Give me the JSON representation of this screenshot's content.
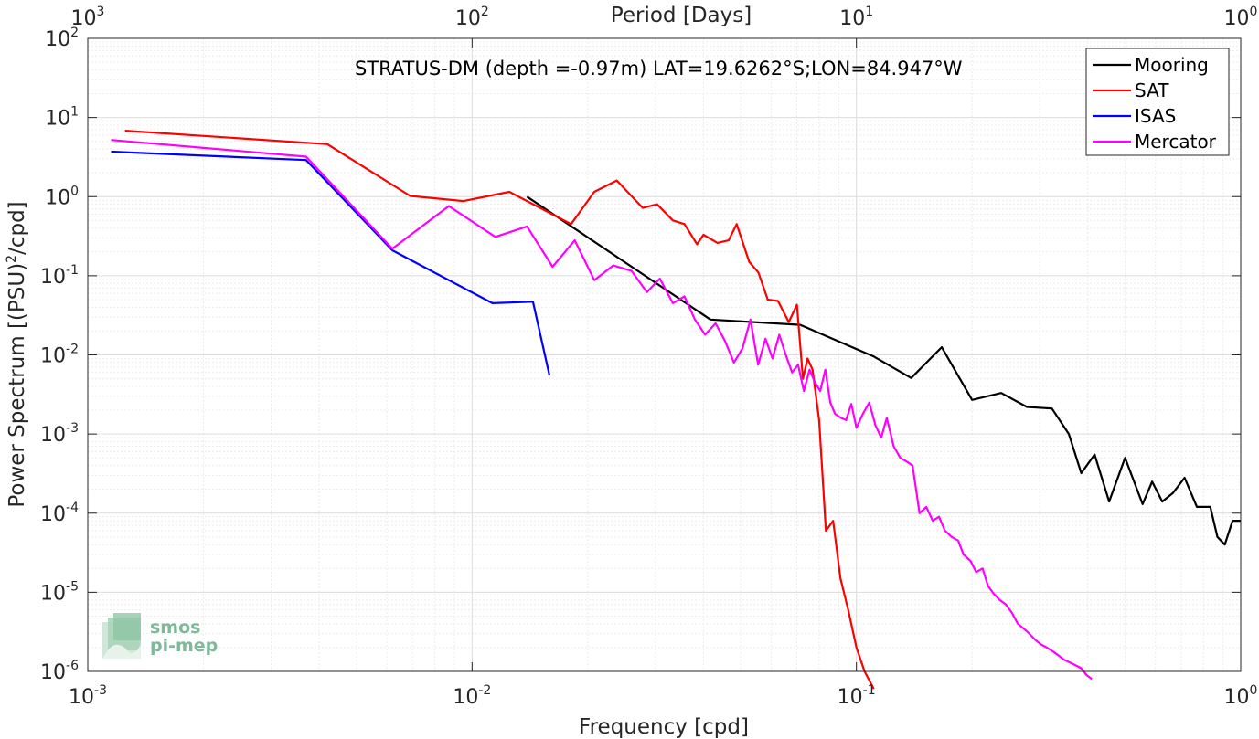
{
  "chart_data": {
    "type": "line",
    "title": "STRATUS-DM (depth =-0.97m) LAT=19.6262°S;LON=84.947°W",
    "xlabel": "Frequency [cpd]",
    "ylabel_main": "Power Spectrum [(PSU)",
    "ylabel_sup": "2",
    "ylabel_tail": "/cpd]",
    "top_axis_label": "Period [Days]",
    "x_scale": "log",
    "y_scale": "log",
    "xlim": [
      0.001,
      1
    ],
    "ylim": [
      1e-06,
      100
    ],
    "grid": true,
    "legend_position": "top-right",
    "x_ticks": [
      {
        "v": 0.001,
        "base": "10",
        "exp": "-3"
      },
      {
        "v": 0.01,
        "base": "10",
        "exp": "-2"
      },
      {
        "v": 0.1,
        "base": "10",
        "exp": "-1"
      },
      {
        "v": 1,
        "base": "10",
        "exp": "0"
      }
    ],
    "top_ticks": [
      {
        "v": 0.001,
        "base": "10",
        "exp": "3"
      },
      {
        "v": 0.01,
        "base": "10",
        "exp": "2"
      },
      {
        "v": 0.1,
        "base": "10",
        "exp": "1"
      },
      {
        "v": 1,
        "base": "10",
        "exp": "0"
      }
    ],
    "y_ticks": [
      {
        "v": 1e-06,
        "base": "10",
        "exp": "-6"
      },
      {
        "v": 1e-05,
        "base": "10",
        "exp": "-5"
      },
      {
        "v": 0.0001,
        "base": "10",
        "exp": "-4"
      },
      {
        "v": 0.001,
        "base": "10",
        "exp": "-3"
      },
      {
        "v": 0.01,
        "base": "10",
        "exp": "-2"
      },
      {
        "v": 0.1,
        "base": "10",
        "exp": "-1"
      },
      {
        "v": 1,
        "base": "10",
        "exp": "0"
      },
      {
        "v": 10,
        "base": "10",
        "exp": "1"
      },
      {
        "v": 100,
        "base": "10",
        "exp": "2"
      }
    ],
    "series": [
      {
        "name": "Mooring",
        "color": "#000000",
        "x": [
          0.0139,
          0.0417,
          0.0714,
          0.1111,
          0.1389,
          0.1667,
          0.2,
          0.2381,
          0.2778,
          0.3226,
          0.3571,
          0.3846,
          0.4167,
          0.4545,
          0.5,
          0.5556,
          0.5882,
          0.625,
          0.6667,
          0.7143,
          0.7692,
          0.8333,
          0.8696,
          0.9091,
          0.9524,
          1.0
        ],
        "y": [
          1.0,
          0.028,
          0.024,
          0.0095,
          0.0051,
          0.0125,
          0.0027,
          0.0033,
          0.0022,
          0.0021,
          0.001,
          0.00032,
          0.00055,
          0.00014,
          0.0005,
          0.00013,
          0.00025,
          0.00014,
          0.00018,
          0.00028,
          0.00012,
          0.00012,
          5e-05,
          4e-05,
          8e-05,
          8e-05
        ]
      },
      {
        "name": "SAT",
        "color": "#ff0000",
        "x": [
          0.00125,
          0.0042,
          0.0069,
          0.0095,
          0.0125,
          0.0181,
          0.0208,
          0.0238,
          0.0278,
          0.0303,
          0.0333,
          0.0357,
          0.0385,
          0.04,
          0.0435,
          0.0465,
          0.0488,
          0.0526,
          0.0556,
          0.0588,
          0.0625,
          0.0667,
          0.07,
          0.0726,
          0.0746,
          0.0769,
          0.08,
          0.0833,
          0.087,
          0.0909,
          0.0952,
          0.1,
          0.105,
          0.111
        ],
        "y": [
          6.8,
          4.6,
          1.02,
          0.88,
          1.15,
          0.45,
          1.15,
          1.6,
          0.72,
          0.8,
          0.5,
          0.45,
          0.25,
          0.33,
          0.26,
          0.28,
          0.45,
          0.15,
          0.11,
          0.05,
          0.048,
          0.026,
          0.043,
          0.005,
          0.009,
          0.0065,
          0.0015,
          6e-05,
          8e-05,
          1.5e-05,
          6e-06,
          2e-06,
          1e-06,
          6e-07
        ]
      },
      {
        "name": "ISAS",
        "color": "#0000ff",
        "x": [
          0.00115,
          0.0037,
          0.0062,
          0.0113,
          0.0144,
          0.0159
        ],
        "y": [
          3.7,
          2.9,
          0.21,
          0.045,
          0.047,
          0.0055
        ]
      },
      {
        "name": "Mercator",
        "color": "#ff00ff",
        "x": [
          0.00115,
          0.0037,
          0.0062,
          0.0087,
          0.0115,
          0.0139,
          0.0162,
          0.0185,
          0.0208,
          0.0233,
          0.026,
          0.0285,
          0.0308,
          0.0333,
          0.0357,
          0.038,
          0.0404,
          0.043,
          0.0455,
          0.048,
          0.0505,
          0.053,
          0.0555,
          0.058,
          0.0605,
          0.063,
          0.0655,
          0.068,
          0.0705,
          0.073,
          0.0755,
          0.078,
          0.0805,
          0.083,
          0.0855,
          0.088,
          0.091,
          0.094,
          0.097,
          0.1,
          0.104,
          0.108,
          0.112,
          0.116,
          0.12,
          0.125,
          0.13,
          0.135,
          0.14,
          0.146,
          0.152,
          0.158,
          0.164,
          0.17,
          0.177,
          0.184,
          0.19,
          0.198,
          0.205,
          0.213,
          0.22,
          0.228,
          0.236,
          0.245,
          0.254,
          0.263,
          0.272,
          0.282,
          0.292,
          0.302,
          0.313,
          0.324,
          0.335,
          0.347,
          0.359,
          0.371,
          0.384,
          0.397,
          0.41
        ],
        "y": [
          5.2,
          3.2,
          0.22,
          0.76,
          0.31,
          0.42,
          0.13,
          0.28,
          0.088,
          0.135,
          0.115,
          0.062,
          0.092,
          0.045,
          0.055,
          0.028,
          0.018,
          0.025,
          0.015,
          0.008,
          0.012,
          0.028,
          0.0075,
          0.016,
          0.009,
          0.018,
          0.01,
          0.006,
          0.0075,
          0.0035,
          0.0065,
          0.0045,
          0.0035,
          0.0065,
          0.0025,
          0.0018,
          0.0016,
          0.0015,
          0.0024,
          0.0012,
          0.0018,
          0.0025,
          0.0013,
          0.0009,
          0.0016,
          0.0007,
          0.0005,
          0.00045,
          0.0004,
          0.0001,
          0.00012,
          8e-05,
          9e-05,
          6e-05,
          5e-05,
          4.5e-05,
          3e-05,
          2.5e-05,
          1.8e-05,
          2e-05,
          1.2e-05,
          9.5e-06,
          8e-06,
          7e-06,
          5.5e-06,
          4e-06,
          3.5e-06,
          3e-06,
          2.5e-06,
          2.2e-06,
          2e-06,
          1.8e-06,
          1.6e-06,
          1.4e-06,
          1.3e-06,
          1.2e-06,
          1.1e-06,
          9e-07,
          8e-07
        ]
      }
    ],
    "logo": {
      "line1": "smos",
      "line2": "pi-mep"
    }
  }
}
